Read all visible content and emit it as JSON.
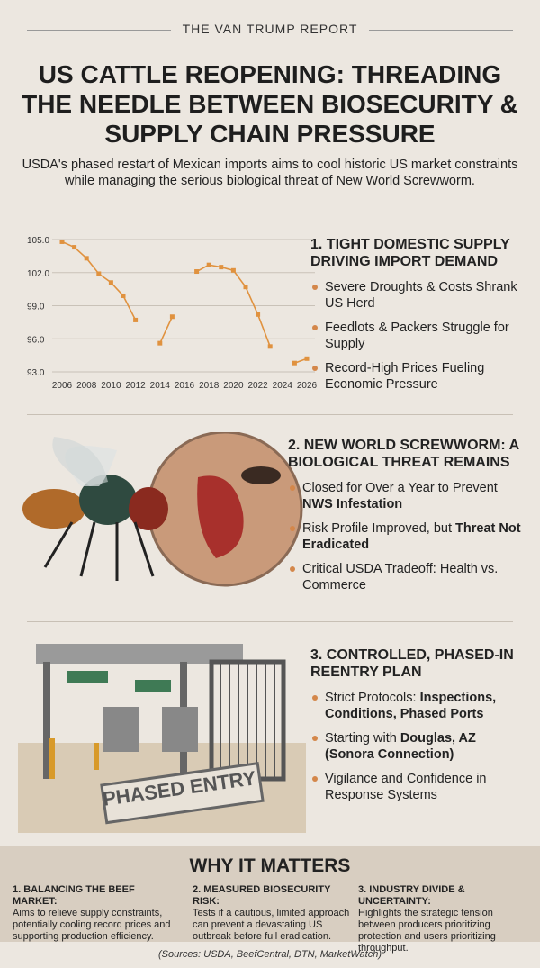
{
  "header": {
    "brand": "THE VAN TRUMP REPORT",
    "title": "US CATTLE REOPENING: THREADING THE NEEDLE BETWEEN BIOSECURITY & SUPPLY CHAIN PRESSURE",
    "subtitle": "USDA's phased restart of Mexican imports aims to cool historic US market constraints while managing the serious biological threat of New World Screwworm."
  },
  "chart_data": {
    "type": "line",
    "x": [
      2006,
      2007,
      2008,
      2009,
      2010,
      2011,
      2012,
      2013,
      2014,
      2015,
      2016,
      2017,
      2018,
      2019,
      2020,
      2021,
      2022,
      2023,
      2024,
      2025,
      2026
    ],
    "series": [
      {
        "color": "#e0923f",
        "values": [
          104.8,
          104.3,
          103.3,
          101.9,
          101.1,
          99.9,
          97.7,
          null,
          95.6,
          98.0,
          null,
          102.1,
          102.7,
          102.5,
          102.2,
          100.7,
          98.2,
          95.3,
          null,
          93.8,
          94.2
        ]
      }
    ],
    "xlim": [
      2006,
      2026
    ],
    "xticks": [
      2006,
      2008,
      2010,
      2012,
      2014,
      2016,
      2018,
      2020,
      2022,
      2024,
      2026
    ],
    "ylim": [
      93,
      105
    ],
    "yticks": [
      {
        "value": 93,
        "label": "93.0"
      },
      {
        "value": 96,
        "label": "96.0"
      },
      {
        "value": 99,
        "label": "99.0"
      },
      {
        "value": 102,
        "label": "102.0"
      },
      {
        "value": 105,
        "label": "105.0"
      }
    ],
    "grid": true
  },
  "sections": [
    {
      "heading": "1. TIGHT DOMESTIC SUPPLY DRIVING IMPORT DEMAND",
      "bullets": [
        {
          "text": "Severe Droughts & Costs Shrank US Herd"
        },
        {
          "text": "Feedlots & Packers Struggle for Supply"
        },
        {
          "text": "Record-High Prices Fueling Economic Pressure"
        }
      ]
    },
    {
      "heading": "2. NEW WORLD SCREWWORM: A BIOLOGICAL THREAT REMAINS",
      "bullets": [
        {
          "text": "Closed for Over a Year to Prevent",
          "bold": "NWS Infestation"
        },
        {
          "text": "Risk Profile Improved, but",
          "bold": "Threat Not Eradicated"
        },
        {
          "text": "Critical USDA Tradeoff: Health vs. Commerce"
        }
      ]
    },
    {
      "heading": "3. CONTROLLED, PHASED-IN REENTRY PLAN",
      "bullets": [
        {
          "text": "Strict Protocols:",
          "bold": "Inspections, Conditions, Phased Ports"
        },
        {
          "text": "Starting with",
          "bold": "Douglas, AZ (Sonora Connection)"
        },
        {
          "text": "Vigilance and Confidence in Response Systems"
        }
      ]
    }
  ],
  "stamp": "PHASED ENTRY",
  "why": {
    "title": "WHY IT MATTERS",
    "columns": [
      {
        "heading": "1. BALANCING THE BEEF MARKET:",
        "body": "Aims to relieve supply constraints, potentially cooling record prices and supporting production efficiency."
      },
      {
        "heading": "2. MEASURED BIOSECURITY RISK:",
        "body": "Tests if a cautious, limited approach can prevent a devastating US outbreak before full eradication."
      },
      {
        "heading": "3. INDUSTRY DIVIDE & UNCERTAINTY:",
        "body": "Highlights the strategic tension between producers prioritizing protection and users prioritizing throughput."
      }
    ]
  },
  "sources": "(Sources: USDA, BeefCentral, DTN, MarketWatch)"
}
